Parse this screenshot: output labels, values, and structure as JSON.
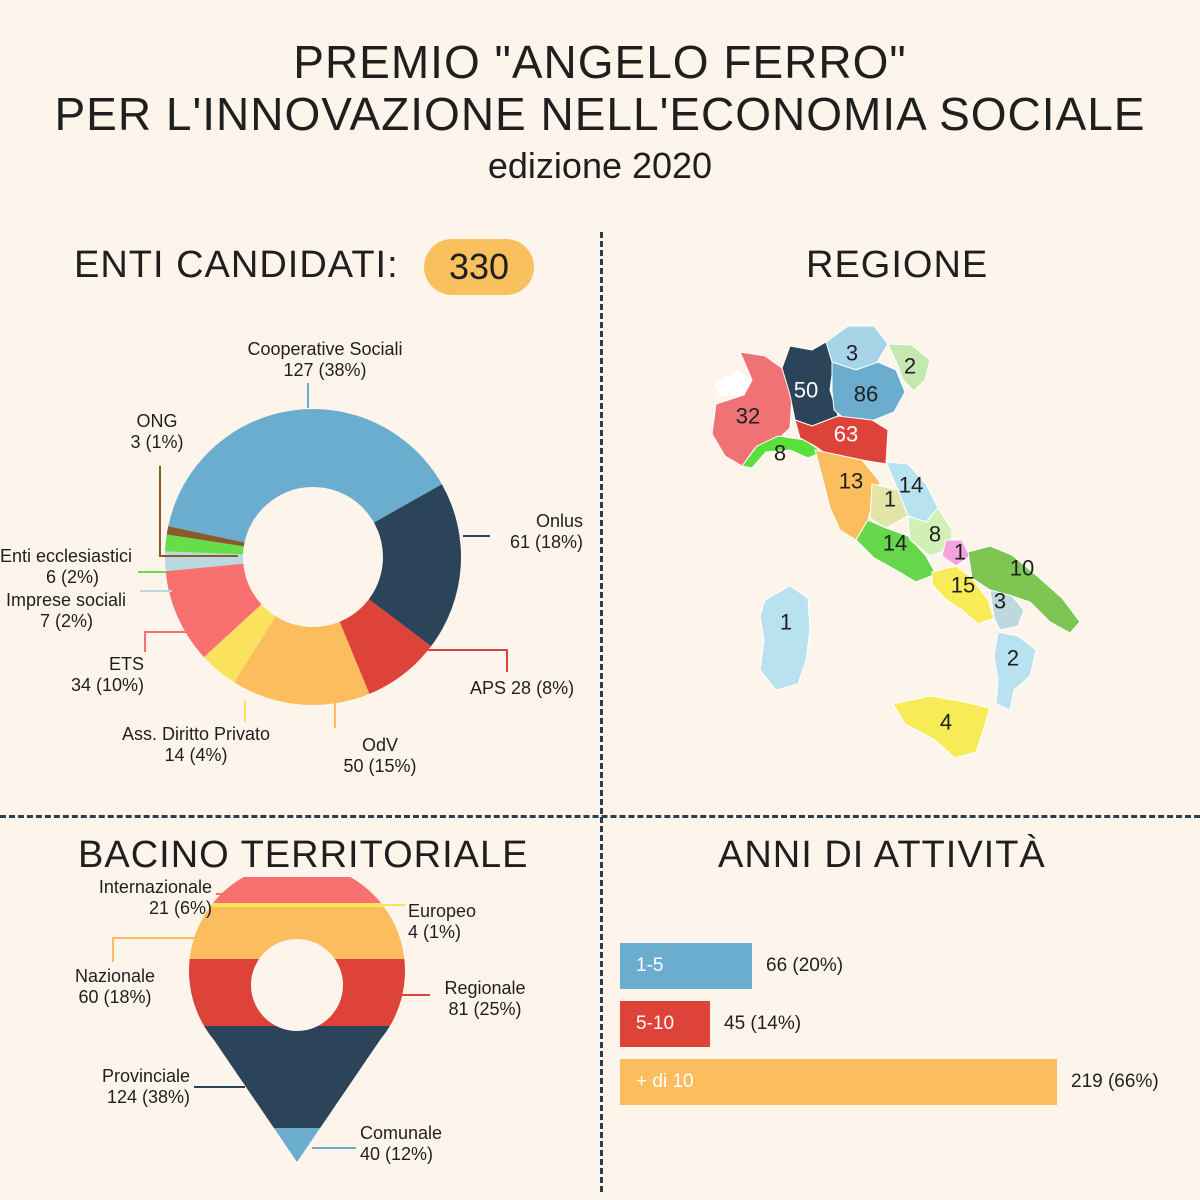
{
  "header": {
    "title_line1": "PREMIO \"ANGELO FERRO\"",
    "title_line2": "PER L'INNOVAZIONE NELL'ECONOMIA SOCIALE",
    "subtitle": "edizione 2020"
  },
  "enti": {
    "title": "ENTI CANDIDATI:",
    "total": "330"
  },
  "regione": {
    "title": "REGIONE",
    "values": {
      "valle_aosta": "",
      "piemonte": "32",
      "lombardia": "50",
      "trentino": "3",
      "veneto": "86",
      "friuli": "2",
      "liguria": "8",
      "emilia": "63",
      "toscana": "13",
      "umbria": "1",
      "marche": "14",
      "lazio": "14",
      "abruzzo": "8",
      "molise": "1",
      "puglia": "10",
      "campania": "15",
      "basilicata": "3",
      "calabria": "2",
      "sicilia": "4",
      "sardegna": "1"
    }
  },
  "bacino": {
    "title": "BACINO TERRITORIALE"
  },
  "anni": {
    "title": "ANNI DI ATTIVITÀ"
  },
  "chart_data": [
    {
      "type": "pie",
      "title": "ENTI CANDIDATI:",
      "total": 330,
      "categories": [
        "Cooperative Sociali",
        "Onlus",
        "APS",
        "OdV",
        "Ass. Diritto Privato",
        "ETS",
        "Imprese sociali",
        "Enti ecclesiastici",
        "ONG"
      ],
      "values": [
        127,
        61,
        28,
        50,
        14,
        34,
        7,
        6,
        3
      ],
      "value_labels": [
        "127 (38%)",
        "61 (18%)",
        "28 (8%)",
        "50 (15%)",
        "14 (4%)",
        "34 (10%)",
        "7 (2%)",
        "6 (2%)",
        "3 (1%)"
      ],
      "colors": [
        "#6aadcf",
        "#2b4459",
        "#dd4339",
        "#fbbd5d",
        "#fbe25e",
        "#f97070",
        "#b9d8e0",
        "#66de49",
        "#8b5a2b"
      ],
      "donut": true
    },
    {
      "type": "bar",
      "title": "BACINO TERRITORIALE",
      "categories": [
        "Internazionale",
        "Europeo",
        "Nazionale",
        "Regionale",
        "Provinciale",
        "Comunale"
      ],
      "values": [
        21,
        4,
        60,
        81,
        124,
        40
      ],
      "value_labels": [
        "21 (6%)",
        "4 (1%)",
        "60 (18%)",
        "81 (25%)",
        "124 (38%)",
        "40 (12%)"
      ],
      "colors": [
        "#f97070",
        "#fbe25e",
        "#fbbd5d",
        "#dd4339",
        "#2b4459",
        "#6aadcf"
      ]
    },
    {
      "type": "bar",
      "orientation": "horizontal",
      "title": "ANNI DI ATTIVITÀ",
      "categories": [
        "1-5",
        "5-10",
        "+ di 10"
      ],
      "values": [
        66,
        45,
        219
      ],
      "value_labels": [
        "66 (20%)",
        "45 (14%)",
        "219 (66%)"
      ],
      "colors": [
        "#6aadcf",
        "#dd4339",
        "#fbbd5d"
      ]
    }
  ]
}
